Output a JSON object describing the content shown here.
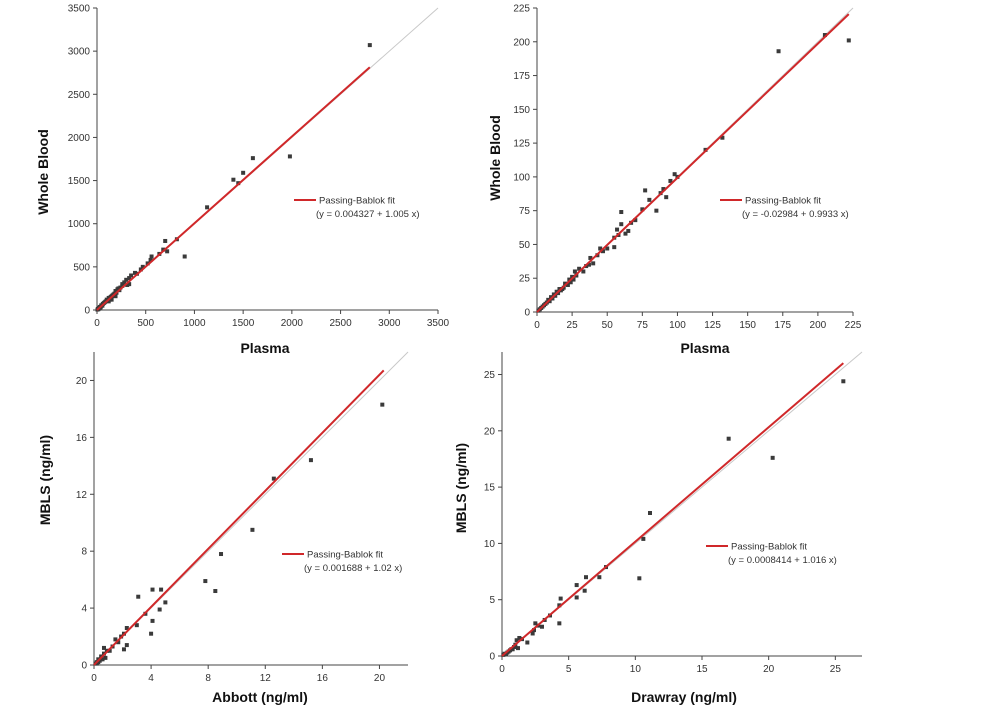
{
  "colors": {
    "fit_line": "#d0282a",
    "identity_line": "#c8c8c8",
    "points": "#3a3a3a",
    "axis": "#444444"
  },
  "chart_data": [
    {
      "type": "scatter",
      "xlabel": "Plasma",
      "ylabel": "Whole Blood",
      "xlim": [
        0,
        3500
      ],
      "ylim": [
        0,
        3500
      ],
      "xticks": [
        0,
        500,
        1000,
        1500,
        2000,
        2500,
        3000,
        3500
      ],
      "yticks": [
        0,
        500,
        1000,
        1500,
        2000,
        2500,
        3000,
        3500
      ],
      "fit": {
        "name": "Passing-Bablok fit",
        "equation": "(y = 0.004327 + 1.005 x)",
        "intercept": 0.004327,
        "slope": 1.005,
        "x_range": [
          0,
          2800
        ]
      },
      "identity_line": [
        0,
        3500
      ],
      "legend_position": "middle-right",
      "points": [
        [
          2800,
          3070
        ],
        [
          1980,
          1780
        ],
        [
          1600,
          1760
        ],
        [
          1500,
          1590
        ],
        [
          1400,
          1510
        ],
        [
          1450,
          1470
        ],
        [
          1130,
          1190
        ],
        [
          900,
          620
        ],
        [
          820,
          820
        ],
        [
          700,
          800
        ],
        [
          720,
          680
        ],
        [
          560,
          620
        ],
        [
          550,
          580
        ],
        [
          520,
          540
        ],
        [
          470,
          500
        ],
        [
          450,
          470
        ],
        [
          390,
          430
        ],
        [
          350,
          400
        ],
        [
          330,
          370
        ],
        [
          300,
          350
        ],
        [
          310,
          290
        ],
        [
          280,
          320
        ],
        [
          260,
          280
        ],
        [
          240,
          260
        ],
        [
          220,
          250
        ],
        [
          210,
          240
        ],
        [
          200,
          200
        ],
        [
          190,
          220
        ],
        [
          180,
          190
        ],
        [
          170,
          180
        ],
        [
          160,
          170
        ],
        [
          150,
          160
        ],
        [
          140,
          150
        ],
        [
          130,
          120
        ],
        [
          120,
          140
        ],
        [
          110,
          110
        ],
        [
          100,
          120
        ],
        [
          90,
          100
        ],
        [
          80,
          90
        ],
        [
          70,
          80
        ],
        [
          60,
          70
        ],
        [
          55,
          50
        ],
        [
          45,
          55
        ],
        [
          40,
          40
        ],
        [
          35,
          30
        ],
        [
          30,
          35
        ],
        [
          25,
          20
        ],
        [
          20,
          25
        ],
        [
          15,
          10
        ],
        [
          10,
          12
        ],
        [
          5,
          5
        ],
        [
          230,
          230
        ],
        [
          260,
          300
        ],
        [
          190,
          160
        ],
        [
          150,
          120
        ],
        [
          120,
          100
        ],
        [
          330,
          300
        ],
        [
          410,
          420
        ],
        [
          640,
          650
        ],
        [
          680,
          700
        ]
      ]
    },
    {
      "type": "scatter",
      "xlabel": "Plasma",
      "ylabel": "Whole Blood",
      "xlim": [
        0,
        225
      ],
      "ylim": [
        0,
        225
      ],
      "xticks": [
        0,
        25,
        50,
        75,
        100,
        125,
        150,
        175,
        200,
        225
      ],
      "yticks": [
        0,
        25,
        50,
        75,
        100,
        125,
        150,
        175,
        200,
        225
      ],
      "fit": {
        "name": "Passing-Bablok fit",
        "equation": "(y = -0.02984 + 0.9933 x)",
        "intercept": -0.02984,
        "slope": 0.9933,
        "x_range": [
          0,
          222
        ]
      },
      "identity_line": [
        0,
        225
      ],
      "legend_position": "middle-right",
      "points": [
        [
          205,
          205
        ],
        [
          222,
          201
        ],
        [
          172,
          193
        ],
        [
          132,
          129
        ],
        [
          120,
          120
        ],
        [
          100,
          100
        ],
        [
          98,
          102
        ],
        [
          95,
          97
        ],
        [
          92,
          85
        ],
        [
          90,
          91
        ],
        [
          88,
          88
        ],
        [
          85,
          75
        ],
        [
          80,
          83
        ],
        [
          77,
          90
        ],
        [
          75,
          76
        ],
        [
          70,
          68
        ],
        [
          67,
          66
        ],
        [
          65,
          60
        ],
        [
          63,
          58
        ],
        [
          60,
          74
        ],
        [
          60,
          65
        ],
        [
          58,
          57
        ],
        [
          57,
          61
        ],
        [
          55,
          55
        ],
        [
          55,
          48
        ],
        [
          50,
          47
        ],
        [
          47,
          45
        ],
        [
          45,
          47
        ],
        [
          43,
          42
        ],
        [
          40,
          36
        ],
        [
          38,
          40
        ],
        [
          37,
          35
        ],
        [
          35,
          34
        ],
        [
          33,
          30
        ],
        [
          30,
          32
        ],
        [
          28,
          27
        ],
        [
          27,
          30
        ],
        [
          26,
          24
        ],
        [
          25,
          26
        ],
        [
          24,
          22
        ],
        [
          23,
          24
        ],
        [
          22,
          20
        ],
        [
          20,
          21
        ],
        [
          19,
          18
        ],
        [
          18,
          17
        ],
        [
          17,
          16
        ],
        [
          16,
          17
        ],
        [
          15,
          14
        ],
        [
          14,
          15
        ],
        [
          13,
          12
        ],
        [
          12,
          13
        ],
        [
          11,
          10
        ],
        [
          10,
          11
        ],
        [
          9,
          8
        ],
        [
          8,
          9
        ],
        [
          7,
          7
        ],
        [
          6,
          6
        ],
        [
          5,
          5
        ],
        [
          4,
          4
        ],
        [
          3,
          3
        ],
        [
          2,
          2
        ],
        [
          1,
          1
        ]
      ]
    },
    {
      "type": "scatter",
      "xlabel": "Abbott (ng/ml)",
      "ylabel": "MBLS (ng/ml)",
      "xlim": [
        0,
        22
      ],
      "ylim": [
        0,
        22
      ],
      "xticks": [
        0,
        4,
        8,
        12,
        16,
        20
      ],
      "yticks": [
        0,
        4,
        8,
        12,
        16,
        20
      ],
      "fit": {
        "name": "Passing-Bablok fit",
        "equation": "(y = 0.001688 + 1.02 x)",
        "intercept": 0.001688,
        "slope": 1.02,
        "x_range": [
          0,
          20.3
        ]
      },
      "identity_line": [
        0,
        22
      ],
      "legend_position": "middle-right",
      "points": [
        [
          20.2,
          18.3
        ],
        [
          15.2,
          14.4
        ],
        [
          12.6,
          13.1
        ],
        [
          11.1,
          9.5
        ],
        [
          8.9,
          7.8
        ],
        [
          7.8,
          5.9
        ],
        [
          8.5,
          5.2
        ],
        [
          5.0,
          4.4
        ],
        [
          4.7,
          5.3
        ],
        [
          4.6,
          3.9
        ],
        [
          4.1,
          5.3
        ],
        [
          4.0,
          2.2
        ],
        [
          4.1,
          3.1
        ],
        [
          3.6,
          3.6
        ],
        [
          3.1,
          4.8
        ],
        [
          3.0,
          2.8
        ],
        [
          2.3,
          2.6
        ],
        [
          2.3,
          1.4
        ],
        [
          2.1,
          2.2
        ],
        [
          1.9,
          2.0
        ],
        [
          2.1,
          1.1
        ],
        [
          1.7,
          1.6
        ],
        [
          1.5,
          1.8
        ],
        [
          1.3,
          1.3
        ],
        [
          1.1,
          1.0
        ],
        [
          0.9,
          1.0
        ],
        [
          0.8,
          0.5
        ],
        [
          0.7,
          0.8
        ],
        [
          0.7,
          1.2
        ],
        [
          0.6,
          0.4
        ],
        [
          0.5,
          0.6
        ],
        [
          0.4,
          0.3
        ],
        [
          0.3,
          0.2
        ],
        [
          0.2,
          0.2
        ],
        [
          0.1,
          0.1
        ],
        [
          0.3,
          0.4
        ],
        [
          0.5,
          0.4
        ],
        [
          0.2,
          0.1
        ]
      ]
    },
    {
      "type": "scatter",
      "xlabel": "Drawray (ng/ml)",
      "ylabel": "MBLS (ng/ml)",
      "xlim": [
        0,
        27
      ],
      "ylim": [
        0,
        27
      ],
      "xticks": [
        0,
        5,
        10,
        15,
        20,
        25
      ],
      "yticks": [
        0,
        5,
        10,
        15,
        20,
        25
      ],
      "fit": {
        "name": "Passing-Bablok fit",
        "equation": "(y = 0.0008414 + 1.016 x)",
        "intercept": 0.0008414,
        "slope": 1.016,
        "x_range": [
          0,
          25.6
        ]
      },
      "identity_line": [
        0,
        27
      ],
      "legend_position": "middle-right",
      "points": [
        [
          25.6,
          24.4
        ],
        [
          20.3,
          17.6
        ],
        [
          17.0,
          19.3
        ],
        [
          11.1,
          12.7
        ],
        [
          10.6,
          10.4
        ],
        [
          10.3,
          6.9
        ],
        [
          7.8,
          7.9
        ],
        [
          7.3,
          7.0
        ],
        [
          6.3,
          7.0
        ],
        [
          6.2,
          5.8
        ],
        [
          5.6,
          6.3
        ],
        [
          5.6,
          5.2
        ],
        [
          4.4,
          5.1
        ],
        [
          4.3,
          4.5
        ],
        [
          4.3,
          2.9
        ],
        [
          3.6,
          3.6
        ],
        [
          3.2,
          3.2
        ],
        [
          3.0,
          2.6
        ],
        [
          2.7,
          2.7
        ],
        [
          2.5,
          2.9
        ],
        [
          2.4,
          2.3
        ],
        [
          2.3,
          2.0
        ],
        [
          1.9,
          1.2
        ],
        [
          1.3,
          1.6
        ],
        [
          1.2,
          0.7
        ],
        [
          1.1,
          1.4
        ],
        [
          1.0,
          1.0
        ],
        [
          0.9,
          0.8
        ],
        [
          0.8,
          0.6
        ],
        [
          0.6,
          0.5
        ],
        [
          0.5,
          0.4
        ],
        [
          0.4,
          0.3
        ],
        [
          0.3,
          0.2
        ],
        [
          0.2,
          0.2
        ],
        [
          0.1,
          0.1
        ],
        [
          1.5,
          1.5
        ],
        [
          0.7,
          0.6
        ]
      ]
    }
  ]
}
